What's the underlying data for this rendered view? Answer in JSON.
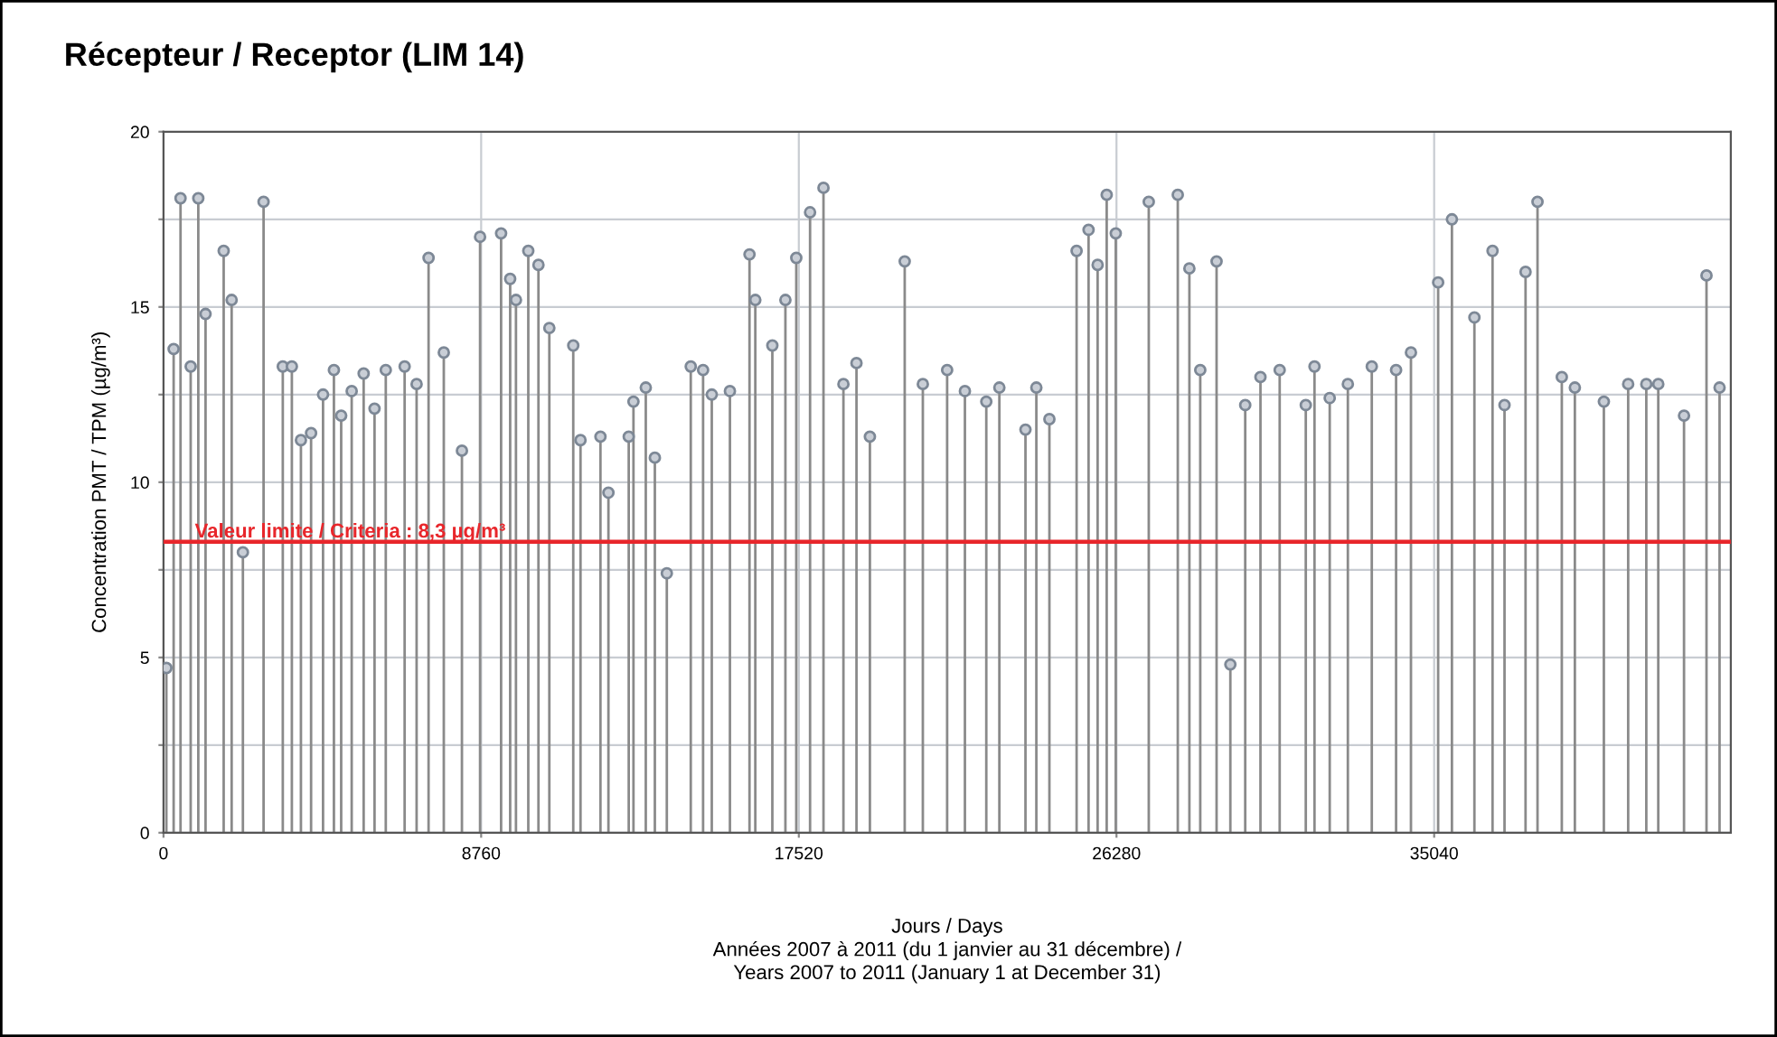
{
  "chart_data": {
    "type": "lollipop",
    "title": "Récepteur / Receptor (LIM 14)",
    "xlabel": "Jours / Days\nAnnées 2007 à 2011 (du 1 janvier au 31 décembre) /\nYears 2007 to 2011 (January 1 at December 31)",
    "ylabel": "Concentration PMT / TPM (µg/m³)",
    "series": [
      {
        "color": "#7d8896",
        "x": [
          80,
          280,
          470,
          750,
          960,
          1160,
          1660,
          1880,
          2190,
          2760,
          3290,
          3540,
          3790,
          4070,
          4400,
          4700,
          4900,
          5190,
          5520,
          5820,
          6130,
          6650,
          6980,
          7310,
          7730,
          8230,
          8730,
          9310,
          9560,
          9720,
          10060,
          10340,
          10640,
          11300,
          11500,
          12050,
          12270,
          12830,
          12960,
          13300,
          13550,
          13880,
          14540,
          14880,
          15120,
          15620,
          16160,
          16320,
          16790,
          17150,
          17450,
          17830,
          18200,
          18750,
          19110,
          19480,
          20440,
          20940,
          21610,
          22100,
          22690,
          23050,
          23770,
          24070,
          24430,
          25180,
          25510,
          25760,
          26010,
          26260,
          27170,
          27970,
          28290,
          28590,
          29040,
          29420,
          29830,
          30250,
          30780,
          31500,
          31740,
          32160,
          32660,
          33320,
          33990,
          34400,
          35150,
          35530,
          36150,
          36650,
          36980,
          37560,
          37890,
          38560,
          38920,
          39720,
          40390,
          40890,
          41220,
          41930,
          42550,
          42910
        ],
        "values": [
          4.7,
          13.8,
          18.1,
          13.3,
          18.1,
          14.8,
          16.6,
          15.2,
          8.0,
          18.0,
          13.3,
          13.3,
          11.2,
          11.4,
          12.5,
          13.2,
          11.9,
          12.6,
          13.1,
          12.1,
          13.2,
          13.3,
          12.8,
          16.4,
          13.7,
          10.9,
          17.0,
          17.1,
          15.8,
          15.2,
          16.6,
          16.2,
          14.4,
          13.9,
          11.2,
          11.3,
          9.7,
          11.3,
          12.3,
          12.7,
          10.7,
          7.4,
          13.3,
          13.2,
          12.5,
          12.6,
          16.5,
          15.2,
          13.9,
          15.2,
          16.4,
          17.7,
          18.4,
          12.8,
          13.4,
          11.3,
          16.3,
          12.8,
          13.2,
          12.6,
          12.3,
          12.7,
          11.5,
          12.7,
          11.8,
          16.6,
          17.2,
          16.2,
          18.2,
          17.1,
          18.0,
          18.2,
          16.1,
          13.2,
          16.3,
          4.8,
          12.2,
          13.0,
          13.2,
          12.2,
          13.3,
          12.4,
          12.8,
          13.3,
          13.2,
          13.7,
          15.7,
          17.5,
          14.7,
          16.6,
          12.2,
          16.0,
          18.0,
          13.0,
          12.7,
          12.3,
          12.8,
          12.8,
          12.8,
          11.9,
          15.9,
          12.7
        ]
      }
    ],
    "marker": "circle",
    "xlim": [
      0,
      43220
    ],
    "xticks": [
      0,
      8760,
      17520,
      26280,
      35040
    ],
    "ylim": [
      0,
      20
    ],
    "yticks": [
      0,
      {
        "value": 2.5,
        "label": null
      },
      5,
      {
        "value": 7.5,
        "label": null
      },
      10,
      {
        "value": 12.5,
        "label": null
      },
      15,
      {
        "value": 17.5,
        "label": null
      },
      20
    ],
    "grid": true,
    "ref_lines": [
      {
        "axis": "y",
        "value": 8.3,
        "label": "Valeur limite / Criteria : 8,3 µg/m³",
        "color": "#e8262b",
        "line_style": "solid"
      }
    ]
  }
}
